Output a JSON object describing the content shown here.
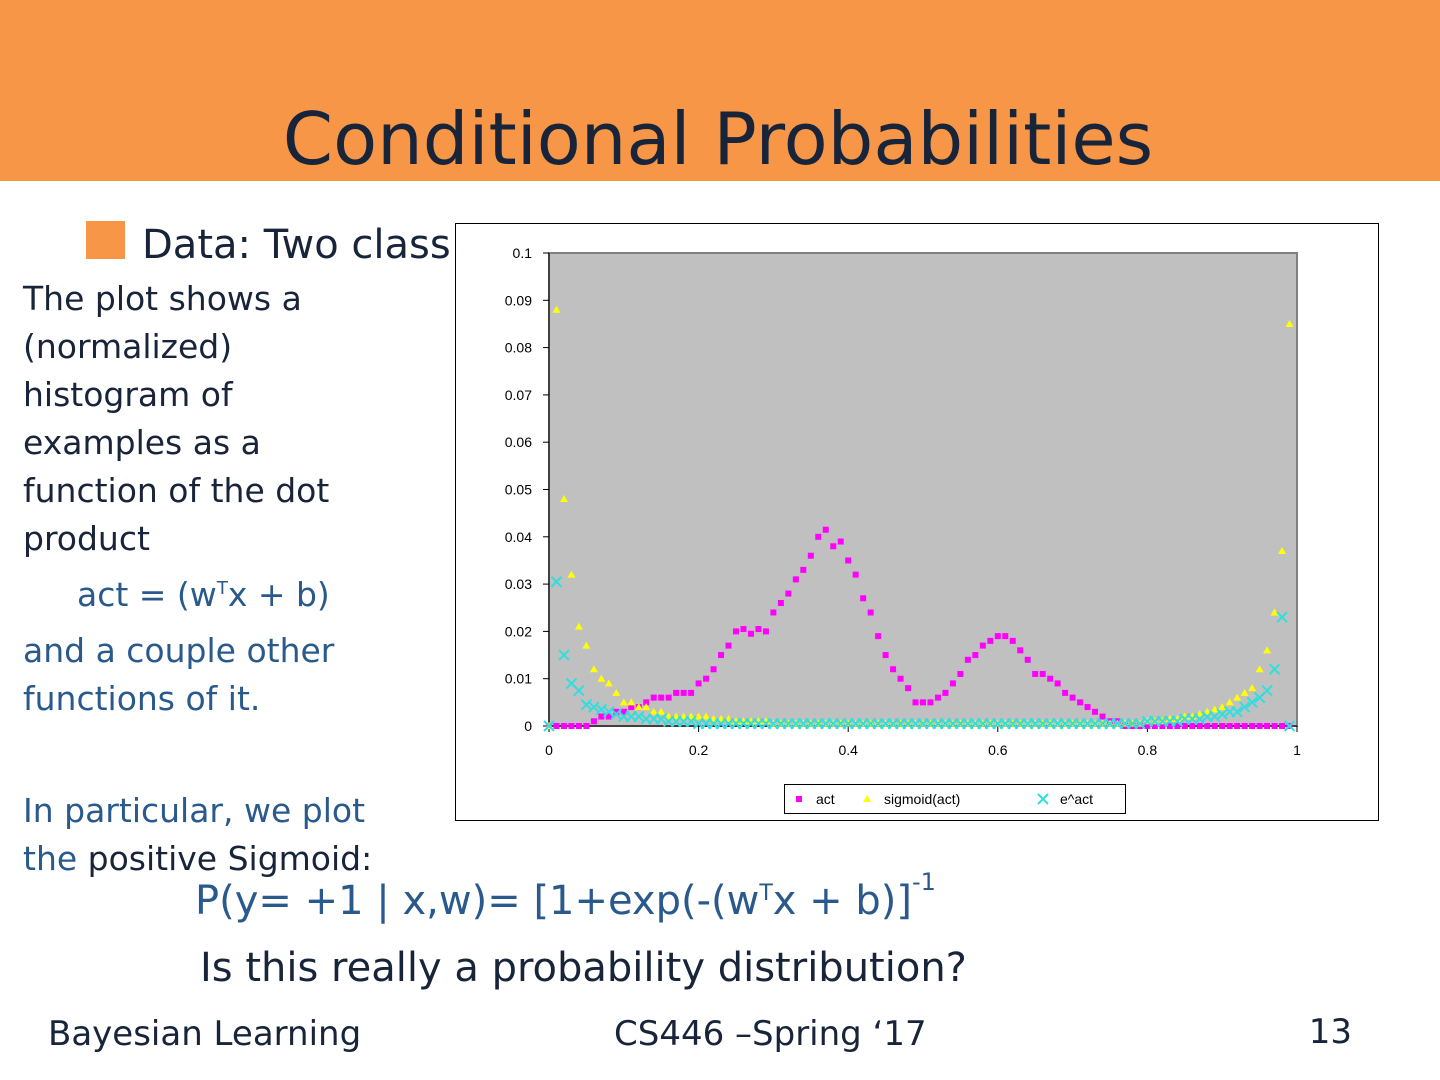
{
  "header": {
    "title": "Conditional Probabilities"
  },
  "bullet": "Data: Two class",
  "body": {
    "paragraph": [
      "The plot shows a",
      "(normalized)",
      "histogram of",
      "examples as a",
      "function of the dot",
      "product"
    ],
    "formula": {
      "lhs": "act = (w",
      "sup": "T",
      "rhs": "x + b)"
    },
    "paragraph2": [
      "and a couple other",
      "functions of it."
    ],
    "paragraph3": {
      "line1": "In particular, we plot",
      "line2_start": "the",
      "line2_end": "positive Sigmoid:"
    }
  },
  "equation": {
    "lhs": "P(y= +1 | x,w)= [1+exp(-(w",
    "sup": "T",
    "mid": "x + b)]",
    "exp": "-1"
  },
  "question": "Is this really a probability distribution?",
  "footer": {
    "left": "Bayesian Learning",
    "center": "CS446 –Spring ‘17",
    "page": "13"
  },
  "chart_data": {
    "type": "scatter",
    "x": [
      0,
      0.01,
      0.02,
      0.03,
      0.04,
      0.05,
      0.06,
      0.07,
      0.08,
      0.09,
      0.1,
      0.11,
      0.12,
      0.13,
      0.14,
      0.15,
      0.16,
      0.17,
      0.18,
      0.19,
      0.2,
      0.21,
      0.22,
      0.23,
      0.24,
      0.25,
      0.26,
      0.27,
      0.28,
      0.29,
      0.3,
      0.31,
      0.32,
      0.33,
      0.34,
      0.35,
      0.36,
      0.37,
      0.38,
      0.39,
      0.4,
      0.41,
      0.42,
      0.43,
      0.44,
      0.45,
      0.46,
      0.47,
      0.48,
      0.49,
      0.5,
      0.51,
      0.52,
      0.53,
      0.54,
      0.55,
      0.56,
      0.57,
      0.58,
      0.59,
      0.6,
      0.61,
      0.62,
      0.63,
      0.64,
      0.65,
      0.66,
      0.67,
      0.68,
      0.69,
      0.7,
      0.71,
      0.72,
      0.73,
      0.74,
      0.75,
      0.76,
      0.77,
      0.78,
      0.79,
      0.8,
      0.81,
      0.82,
      0.83,
      0.84,
      0.85,
      0.86,
      0.87,
      0.88,
      0.89,
      0.9,
      0.91,
      0.92,
      0.93,
      0.94,
      0.95,
      0.96,
      0.97,
      0.98,
      0.99
    ],
    "series": [
      {
        "name": "act",
        "color": "#ff00ff",
        "marker": "square",
        "values": [
          0,
          0,
          0,
          0,
          0,
          0,
          0.001,
          0.002,
          0.002,
          0.003,
          0.003,
          0.004,
          0.004,
          0.005,
          0.006,
          0.006,
          0.006,
          0.007,
          0.007,
          0.007,
          0.009,
          0.01,
          0.012,
          0.015,
          0.017,
          0.02,
          0.0205,
          0.0195,
          0.0205,
          0.02,
          0.024,
          0.026,
          0.028,
          0.031,
          0.033,
          0.036,
          0.04,
          0.0415,
          0.038,
          0.039,
          0.035,
          0.032,
          0.027,
          0.024,
          0.019,
          0.015,
          0.012,
          0.01,
          0.008,
          0.005,
          0.005,
          0.005,
          0.006,
          0.007,
          0.009,
          0.011,
          0.014,
          0.015,
          0.017,
          0.018,
          0.019,
          0.019,
          0.018,
          0.016,
          0.014,
          0.011,
          0.011,
          0.01,
          0.009,
          0.007,
          0.006,
          0.005,
          0.004,
          0.003,
          0.002,
          0.001,
          0.001,
          0,
          0,
          0,
          0,
          0,
          0,
          0,
          0,
          0,
          0,
          0,
          0,
          0,
          0,
          0,
          0,
          0,
          0,
          0,
          0,
          0,
          0,
          0
        ]
      },
      {
        "name": "sigmoid(act)",
        "color": "#ffff00",
        "marker": "triangle",
        "values": [
          0,
          0.088,
          0.048,
          0.032,
          0.021,
          0.017,
          0.012,
          0.01,
          0.009,
          0.007,
          0.005,
          0.005,
          0.004,
          0.004,
          0.003,
          0.003,
          0.002,
          0.002,
          0.002,
          0.002,
          0.002,
          0.002,
          0.0015,
          0.0015,
          0.0015,
          0.001,
          0.001,
          0.001,
          0.001,
          0.001,
          0.0005,
          0.0005,
          0.0005,
          0.0005,
          0.0005,
          0.0005,
          0.0005,
          0.0005,
          0.0005,
          0.0005,
          0.0005,
          0.0005,
          0.0005,
          0.0005,
          0.0005,
          0.0005,
          0.0005,
          0.0005,
          0.0005,
          0.0005,
          0.0005,
          0.0005,
          0.0005,
          0.0005,
          0.0005,
          0.0005,
          0.0005,
          0.0005,
          0.0005,
          0.0005,
          0.0005,
          0.0005,
          0.0005,
          0.0005,
          0.0005,
          0.0005,
          0.0005,
          0.0005,
          0.0005,
          0.0005,
          0.0005,
          0.0005,
          0.0005,
          0.0005,
          0.0005,
          0.0005,
          0.0005,
          0.0005,
          0.0005,
          0.0005,
          0.001,
          0.001,
          0.001,
          0.0015,
          0.0015,
          0.002,
          0.002,
          0.0025,
          0.003,
          0.0035,
          0.004,
          0.005,
          0.006,
          0.007,
          0.008,
          0.012,
          0.016,
          0.024,
          0.037,
          0.085
        ]
      },
      {
        "name": "e^act",
        "color": "#33dddd",
        "marker": "x",
        "values": [
          0,
          0.0305,
          0.015,
          0.009,
          0.0075,
          0.0045,
          0.004,
          0.0035,
          0.003,
          0.0025,
          0.002,
          0.002,
          0.002,
          0.0015,
          0.0015,
          0.0015,
          0.001,
          0.001,
          0.001,
          0.001,
          0.0005,
          0.0005,
          0.0005,
          0.0005,
          0.0005,
          0.0005,
          0.0005,
          0.0005,
          0.0005,
          0.0005,
          0.0005,
          0.0005,
          0.0005,
          0.0005,
          0.0005,
          0.0005,
          0.0005,
          0.0005,
          0.0005,
          0.0005,
          0.0005,
          0.0005,
          0.0005,
          0.0005,
          0.0005,
          0.0005,
          0.0005,
          0.0005,
          0.0005,
          0.0005,
          0.0005,
          0.0005,
          0.0005,
          0.0005,
          0.0005,
          0.0005,
          0.0005,
          0.0005,
          0.0005,
          0.0005,
          0.0005,
          0.0005,
          0.0005,
          0.0005,
          0.0005,
          0.0005,
          0.0005,
          0.0005,
          0.0005,
          0.0005,
          0.0005,
          0.0005,
          0.0005,
          0.0005,
          0.0005,
          0.0005,
          0.0005,
          0.0005,
          0.0005,
          0.0005,
          0.001,
          0.001,
          0.001,
          0.001,
          0.001,
          0.0015,
          0.0015,
          0.0015,
          0.002,
          0.002,
          0.0025,
          0.003,
          0.003,
          0.004,
          0.005,
          0.006,
          0.0075,
          0.012,
          0.023,
          0
        ]
      }
    ],
    "xlim": [
      0,
      1
    ],
    "xticks": [
      0,
      0.2,
      0.4,
      0.6,
      0.8,
      1
    ],
    "ylim": [
      0,
      0.1
    ],
    "yticks": [
      0,
      0.01,
      0.02,
      0.03,
      0.04,
      0.05,
      0.06,
      0.07,
      0.08,
      0.09,
      0.1
    ],
    "background": "#c0c0c0",
    "legend": "bottom"
  }
}
